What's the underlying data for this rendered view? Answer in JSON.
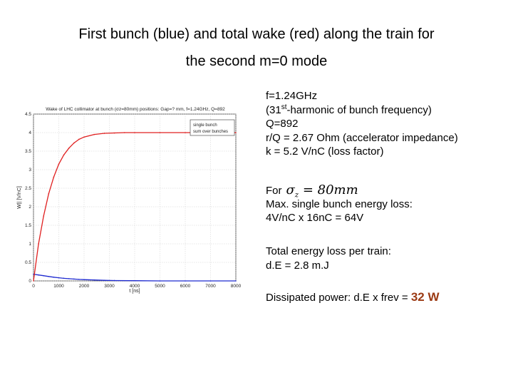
{
  "slide": {
    "title_line1": "First bunch (blue) and total wake (red) along the train for",
    "title_line2": "the second m=0 mode"
  },
  "info": {
    "f": "f=1.24GHz",
    "harmonic_pre": "(31",
    "harmonic_sup": "st",
    "harmonic_post": "-harmonic of bunch frequency)",
    "q": "Q=892",
    "rq": "r/Q = 2.67 Ohm (accelerator impedance)",
    "k": "k = 5.2 V/nC (loss factor)",
    "for_label": "For",
    "sigma_symbol": "σ",
    "sigma_sub": "z",
    "sigma_value": "= 80mm",
    "max_loss_label": "Max. single bunch energy loss:",
    "max_loss_calc": "4V/nC x 16nC = 64V",
    "total_loss_label": "Total energy loss per train:",
    "total_loss_value": "d.E = 2.8 m.J",
    "power_label": "Dissipated power: d.E x frev = ",
    "power_value": "32 W"
  },
  "chart_data": {
    "type": "line",
    "title": "Wake of LHC collimator at bunch (σz=80mm) positions: Gap=? mm, f=1.24GHz, Q=892",
    "xlabel": "t [ns]",
    "ylabel": "W|| [V/nC]",
    "xlim": [
      0,
      8000
    ],
    "ylim": [
      0,
      4.5
    ],
    "x_ticks": [
      "0",
      "1000",
      "2000",
      "3000",
      "4000",
      "5000",
      "6000",
      "7000",
      "8000"
    ],
    "y_ticks": [
      "0",
      "0.5",
      "1",
      "1.5",
      "2",
      "2.5",
      "3",
      "3.5",
      "4",
      "4.5"
    ],
    "grid": true,
    "legend_position": "top-right",
    "legend_entries": [
      "single bunch",
      "sum over bunches"
    ],
    "series": [
      {
        "name": "single bunch",
        "color": "#1f2bd0",
        "x": [
          0,
          200,
          400,
          600,
          800,
          1000,
          1200,
          1400,
          1600,
          1800,
          2000,
          2400,
          2800,
          3200,
          4000,
          5000,
          6000,
          7000,
          8000
        ],
        "y": [
          0.18,
          0.16,
          0.14,
          0.12,
          0.1,
          0.085,
          0.07,
          0.06,
          0.05,
          0.04,
          0.035,
          0.025,
          0.015,
          0.01,
          0.005,
          0.0,
          0.0,
          0.0,
          0.0
        ]
      },
      {
        "name": "sum over bunches",
        "color": "#e02020",
        "x": [
          0,
          200,
          400,
          600,
          800,
          1000,
          1200,
          1400,
          1600,
          1800,
          2000,
          2400,
          2800,
          3200,
          3600,
          4000,
          5000,
          6000,
          7000,
          8000
        ],
        "y": [
          0.0,
          1.0,
          1.75,
          2.35,
          2.8,
          3.15,
          3.4,
          3.58,
          3.72,
          3.82,
          3.88,
          3.95,
          3.98,
          3.99,
          4.0,
          4.0,
          4.0,
          4.0,
          4.0,
          4.0
        ]
      }
    ]
  }
}
